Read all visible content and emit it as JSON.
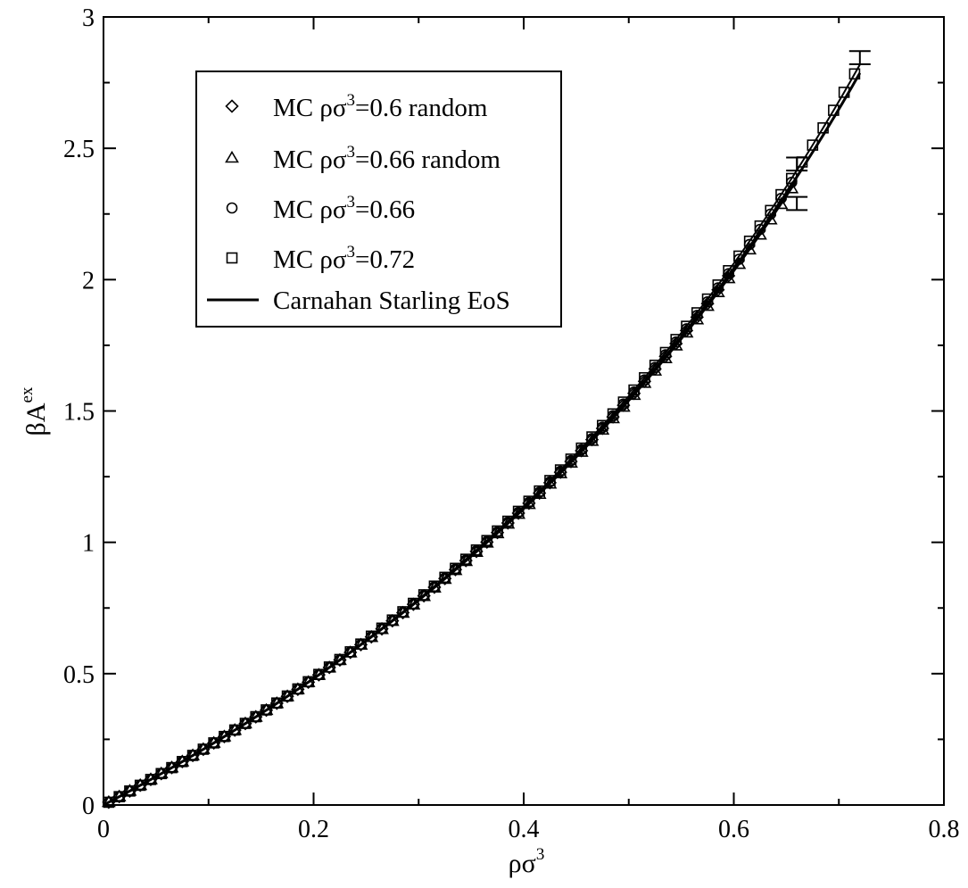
{
  "chart_data": {
    "type": "scatter",
    "xlim": [
      0,
      0.8
    ],
    "ylim": [
      0,
      3
    ],
    "x_ticks": [
      0,
      0.2,
      0.4,
      0.6,
      0.8
    ],
    "y_ticks": [
      0,
      0.5,
      1,
      1.5,
      2,
      2.5,
      3
    ],
    "x_tick_labels": [
      "0",
      "0.2",
      "0.4",
      "0.6",
      "0.8"
    ],
    "y_tick_labels": [
      "0",
      "0.5",
      "1",
      "1.5",
      "2",
      "2.5",
      "3"
    ],
    "xlabel": {
      "base": "ρσ",
      "sup": "3"
    },
    "ylabel": {
      "base": "βA",
      "sup": "ex"
    },
    "grid": false,
    "legend_position": "top-left",
    "series": [
      {
        "name": {
          "prefix": "MC ρσ",
          "sup": "3",
          "suffix": "=0.6 random"
        },
        "marker": "diamond",
        "x_min": 0.005,
        "x_max": 0.6,
        "x_step": 0.01,
        "offset": 0.0,
        "error_bar": null
      },
      {
        "name": {
          "prefix": "MC ρσ",
          "sup": "3",
          "suffix": "=0.66 random"
        },
        "marker": "triangle",
        "x_min": 0.005,
        "x_max": 0.66,
        "x_step": 0.01,
        "offset": -0.0022,
        "error_bar": {
          "x": 0.66,
          "y": 2.29,
          "err": 0.025
        }
      },
      {
        "name": {
          "prefix": "MC ρσ",
          "sup": "3",
          "suffix": "=0.66"
        },
        "marker": "circle",
        "x_min": 0.005,
        "x_max": 0.66,
        "x_step": 0.01,
        "offset": 0.0016,
        "error_bar": {
          "x": 0.66,
          "y": 2.44,
          "err": 0.025
        }
      },
      {
        "name": {
          "prefix": "MC ρσ",
          "sup": "3",
          "suffix": "=0.72"
        },
        "marker": "square",
        "x_min": 0.005,
        "x_max": 0.72,
        "x_step": 0.01,
        "offset": 0.004,
        "error_bar": {
          "x": 0.72,
          "y": 2.845,
          "err": 0.025
        }
      }
    ],
    "curves": [
      {
        "name": "Carnahan Starling EoS",
        "formula": "eta*(4-3*eta)/(1-eta)^2, eta = pi/6 * x",
        "x_max": 0.72,
        "offset": 0.0
      },
      {
        "x_max": 0.66,
        "offset": -0.0022
      },
      {
        "x_max": 0.72,
        "offset": 0.004
      }
    ]
  }
}
